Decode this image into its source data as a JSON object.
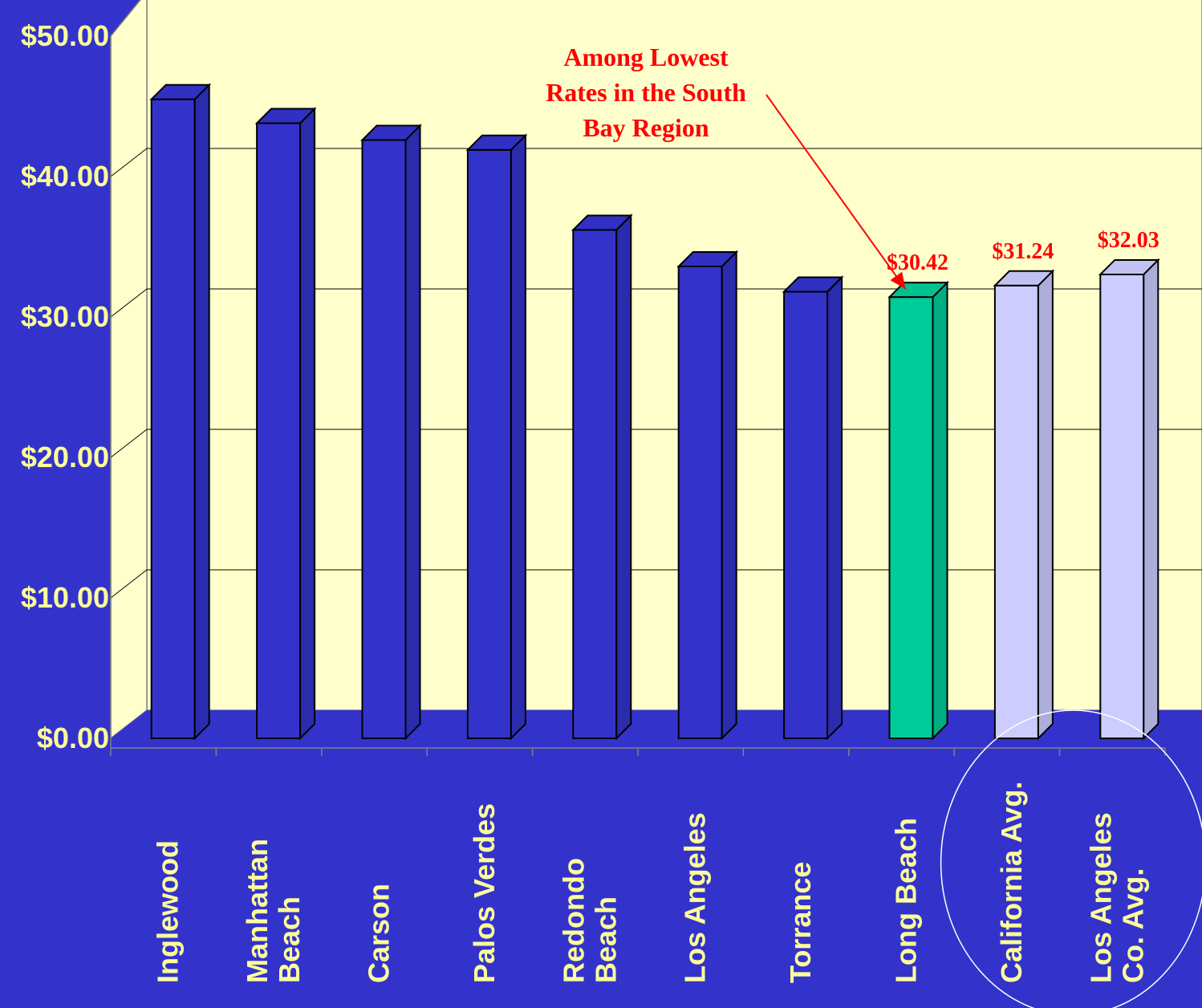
{
  "chart_data": {
    "type": "bar",
    "categories": [
      [
        "Inglewood"
      ],
      [
        "Manhattan",
        "Beach"
      ],
      [
        "Carson"
      ],
      [
        "Palos Verdes"
      ],
      [
        "Redondo",
        "Beach"
      ],
      [
        "Los Angeles"
      ],
      [
        "Torrance"
      ],
      [
        "Long Beach"
      ],
      [
        "California Avg."
      ],
      [
        "Los Angeles",
        "Co. Avg."
      ]
    ],
    "values": [
      44.5,
      42.8,
      41.6,
      40.9,
      35.2,
      32.6,
      30.8,
      30.42,
      31.24,
      32.03
    ],
    "value_labels": [
      "",
      "",
      "",
      "",
      "",
      "",
      "",
      "$30.42",
      "$31.24",
      "$32.03"
    ],
    "bar_colors": [
      "#3333CC",
      "#3333CC",
      "#3333CC",
      "#3333CC",
      "#3333CC",
      "#3333CC",
      "#3333CC",
      "#00CC99",
      "#CCCCFF",
      "#CCCCFF"
    ],
    "y_ticks": [
      "$0.00",
      "$10.00",
      "$20.00",
      "$30.00",
      "$40.00",
      "$50.00"
    ],
    "ylim": [
      0,
      50
    ],
    "grid": true,
    "title": "",
    "xlabel": "",
    "ylabel": "",
    "annotation": {
      "lines": [
        "Among Lowest",
        "Rates in the South",
        "Bay Region"
      ],
      "color": "#FF0000",
      "target": "Long Beach"
    },
    "colors": {
      "background": "#3333CC",
      "plot_wall": "#FFFFCC",
      "floor": "#3333CC",
      "tick_label": "#FFFF99",
      "value_label": "#FF0000"
    }
  }
}
